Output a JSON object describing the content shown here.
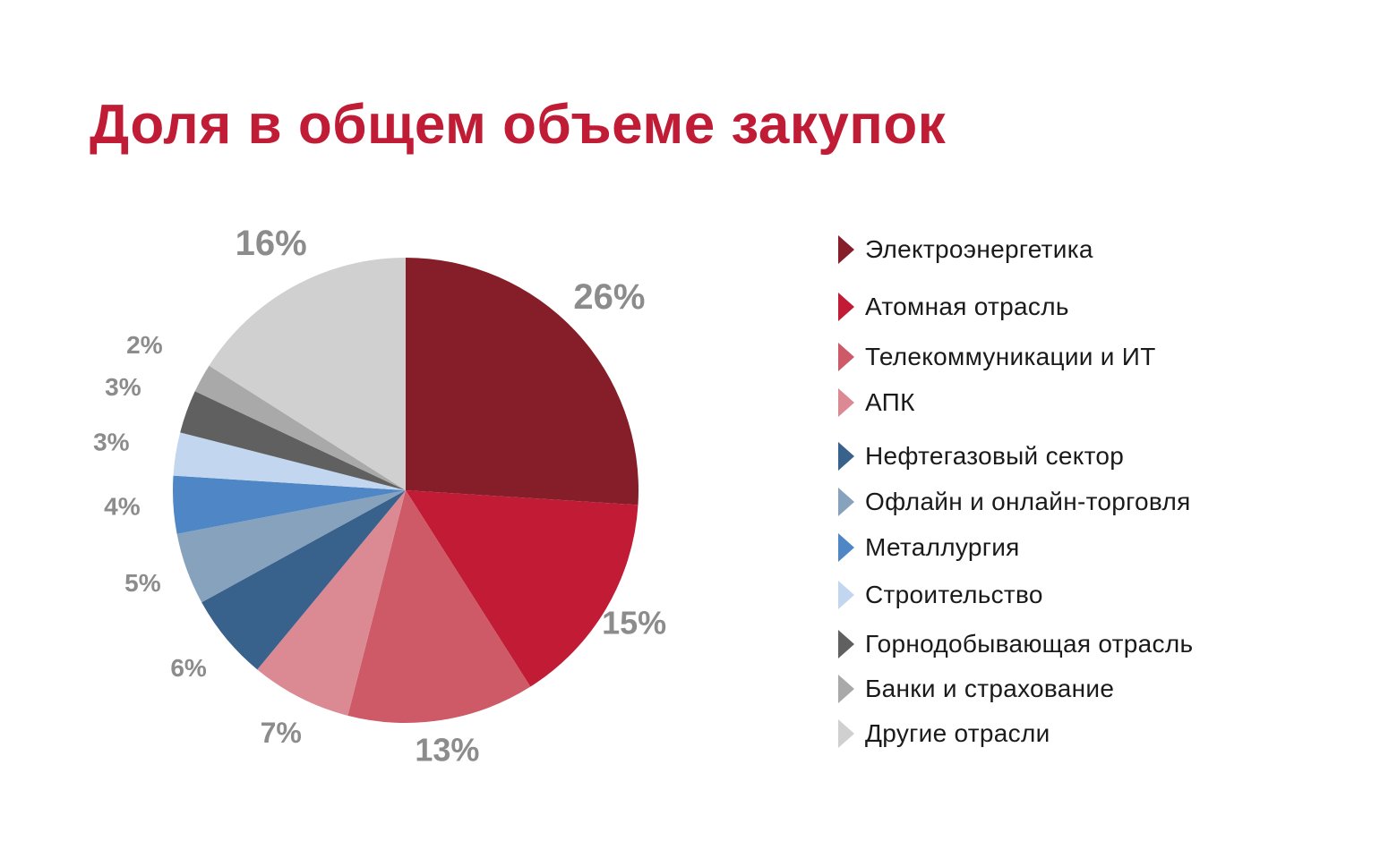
{
  "chart_data": {
    "type": "pie",
    "title": "Доля в общем объеме закупок",
    "slices": [
      {
        "name": "Электроэнергетика",
        "value": 26,
        "label": "26%",
        "color": "#861e2a"
      },
      {
        "name": "Атомная отрасль",
        "value": 15,
        "label": "15%",
        "color": "#c11b36"
      },
      {
        "name": "Телекоммуникации и ИТ",
        "value": 13,
        "label": "13%",
        "color": "#cd5a66"
      },
      {
        "name": "АПК",
        "value": 7,
        "label": "7%",
        "color": "#db8a93"
      },
      {
        "name": "Нефтегазовый сектор",
        "value": 6,
        "label": "6%",
        "color": "#38618c"
      },
      {
        "name": "Офлайн и онлайн-торговля",
        "value": 5,
        "label": "5%",
        "color": "#87a2bd"
      },
      {
        "name": "Металлургия",
        "value": 4,
        "label": "4%",
        "color": "#4f86c6"
      },
      {
        "name": "Строительство",
        "value": 3,
        "label": "3%",
        "color": "#c2d7ef"
      },
      {
        "name": "Горнодобывающая отрасль",
        "value": 3,
        "label": "3%",
        "color": "#606060"
      },
      {
        "name": "Банки и страхование",
        "value": 2,
        "label": "2%",
        "color": "#a9a9a9"
      },
      {
        "name": "Другие отрасли",
        "value": 16,
        "label": "16%",
        "color": "#d0d0d0"
      }
    ],
    "start_angle": "12 o'clock",
    "direction": "clockwise",
    "legend_position": "right",
    "label_color": "#8c8c8c"
  }
}
